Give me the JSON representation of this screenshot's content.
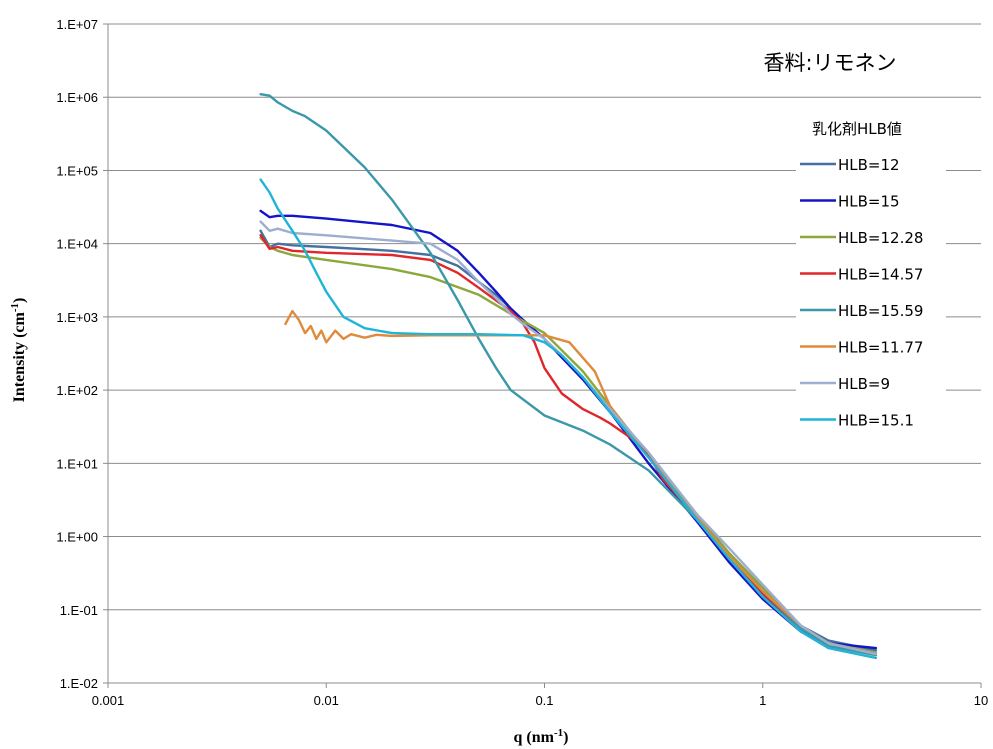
{
  "chart_data": {
    "type": "line",
    "title": "",
    "annotation": "香料:リモネン",
    "xlabel": "q (nm",
    "xlabel_sup": "-1",
    "xlabel_end": ")",
    "ylabel": "Intensity (cm",
    "ylabel_sup": "-1",
    "ylabel_end": ")",
    "x_scale": "log",
    "y_scale": "log",
    "xlim": [
      0.001,
      10
    ],
    "ylim": [
      0.01,
      10000000
    ],
    "x_ticks": [
      {
        "value": 0.001,
        "label": "0.001"
      },
      {
        "value": 0.01,
        "label": "0.01"
      },
      {
        "value": 0.1,
        "label": "0.1"
      },
      {
        "value": 1,
        "label": "1"
      },
      {
        "value": 10,
        "label": "10"
      }
    ],
    "y_ticks": [
      {
        "value": 0.01,
        "label": "1.E-02"
      },
      {
        "value": 0.1,
        "label": "1.E-01"
      },
      {
        "value": 1,
        "label": "1.E+00"
      },
      {
        "value": 10,
        "label": "1.E+01"
      },
      {
        "value": 100,
        "label": "1.E+02"
      },
      {
        "value": 1000,
        "label": "1.E+03"
      },
      {
        "value": 10000,
        "label": "1.E+04"
      },
      {
        "value": 100000,
        "label": "1.E+05"
      },
      {
        "value": 1000000,
        "label": "1.E+06"
      },
      {
        "value": 10000000,
        "label": "1.E+07"
      }
    ],
    "grid": {
      "horizontal": true,
      "vertical": false
    },
    "legend": {
      "title": "乳化剤HLB値",
      "position": "right"
    },
    "series": [
      {
        "name": "HLB=12",
        "color": "#44719f",
        "points": [
          [
            0.005,
            15000
          ],
          [
            0.0055,
            9000
          ],
          [
            0.006,
            10000
          ],
          [
            0.007,
            9500
          ],
          [
            0.01,
            9000
          ],
          [
            0.02,
            8000
          ],
          [
            0.03,
            7000
          ],
          [
            0.04,
            5000
          ],
          [
            0.05,
            3000
          ],
          [
            0.06,
            2000
          ],
          [
            0.07,
            1300
          ],
          [
            0.08,
            900
          ],
          [
            0.1,
            500
          ],
          [
            0.12,
            280
          ],
          [
            0.15,
            140
          ],
          [
            0.2,
            50
          ],
          [
            0.3,
            12
          ],
          [
            0.5,
            1.8
          ],
          [
            0.7,
            0.55
          ],
          [
            1,
            0.17
          ],
          [
            1.5,
            0.06
          ],
          [
            2,
            0.038
          ],
          [
            3.3,
            0.028
          ]
        ]
      },
      {
        "name": "HLB=15",
        "color": "#1414c8",
        "points": [
          [
            0.005,
            28000
          ],
          [
            0.0055,
            23000
          ],
          [
            0.006,
            24000
          ],
          [
            0.007,
            24000
          ],
          [
            0.01,
            22000
          ],
          [
            0.02,
            18000
          ],
          [
            0.03,
            14000
          ],
          [
            0.04,
            8000
          ],
          [
            0.05,
            4000
          ],
          [
            0.06,
            2200
          ],
          [
            0.07,
            1300
          ],
          [
            0.08,
            900
          ],
          [
            0.1,
            500
          ],
          [
            0.12,
            280
          ],
          [
            0.15,
            140
          ],
          [
            0.2,
            50
          ],
          [
            0.3,
            10
          ],
          [
            0.5,
            1.6
          ],
          [
            0.7,
            0.45
          ],
          [
            1,
            0.14
          ],
          [
            1.5,
            0.05
          ],
          [
            2,
            0.035
          ],
          [
            3.3,
            0.03
          ]
        ]
      },
      {
        "name": "HLB=12.28",
        "color": "#8aa83c",
        "points": [
          [
            0.005,
            12000
          ],
          [
            0.0055,
            9000
          ],
          [
            0.006,
            8000
          ],
          [
            0.007,
            7000
          ],
          [
            0.01,
            6000
          ],
          [
            0.02,
            4500
          ],
          [
            0.03,
            3500
          ],
          [
            0.05,
            2000
          ],
          [
            0.07,
            1100
          ],
          [
            0.1,
            600
          ],
          [
            0.12,
            350
          ],
          [
            0.15,
            180
          ],
          [
            0.2,
            60
          ],
          [
            0.3,
            13
          ],
          [
            0.5,
            2
          ],
          [
            0.7,
            0.6
          ],
          [
            1,
            0.2
          ],
          [
            1.5,
            0.06
          ],
          [
            2,
            0.035
          ],
          [
            3.3,
            0.026
          ]
        ]
      },
      {
        "name": "HLB=14.57",
        "color": "#e0262b",
        "points": [
          [
            0.005,
            13000
          ],
          [
            0.0055,
            8500
          ],
          [
            0.006,
            9000
          ],
          [
            0.007,
            8000
          ],
          [
            0.01,
            7500
          ],
          [
            0.02,
            7000
          ],
          [
            0.03,
            6000
          ],
          [
            0.04,
            4000
          ],
          [
            0.05,
            2500
          ],
          [
            0.07,
            1200
          ],
          [
            0.08,
            800
          ],
          [
            0.09,
            450
          ],
          [
            0.1,
            200
          ],
          [
            0.12,
            90
          ],
          [
            0.15,
            55
          ],
          [
            0.18,
            42
          ],
          [
            0.2,
            35
          ],
          [
            0.25,
            22
          ],
          [
            0.3,
            13
          ],
          [
            0.35,
            6
          ],
          [
            0.5,
            1.8
          ],
          [
            0.7,
            0.5
          ],
          [
            1,
            0.16
          ],
          [
            1.5,
            0.055
          ],
          [
            2,
            0.035
          ],
          [
            3.3,
            0.025
          ]
        ]
      },
      {
        "name": "HLB=15.59",
        "color": "#3a98a8",
        "points": [
          [
            0.005,
            1100000
          ],
          [
            0.0055,
            1050000
          ],
          [
            0.006,
            850000
          ],
          [
            0.007,
            650000
          ],
          [
            0.008,
            550000
          ],
          [
            0.01,
            350000
          ],
          [
            0.015,
            110000
          ],
          [
            0.02,
            40000
          ],
          [
            0.03,
            7500
          ],
          [
            0.04,
            1700
          ],
          [
            0.05,
            500
          ],
          [
            0.06,
            200
          ],
          [
            0.07,
            100
          ],
          [
            0.1,
            45
          ],
          [
            0.15,
            28
          ],
          [
            0.2,
            18
          ],
          [
            0.3,
            8
          ],
          [
            0.5,
            1.7
          ],
          [
            0.7,
            0.55
          ],
          [
            1,
            0.18
          ],
          [
            1.5,
            0.055
          ],
          [
            2,
            0.032
          ],
          [
            3.3,
            0.024
          ]
        ]
      },
      {
        "name": "HLB=11.77",
        "color": "#e08a3c",
        "points": [
          [
            0.0065,
            800
          ],
          [
            0.007,
            1200
          ],
          [
            0.0075,
            900
          ],
          [
            0.008,
            600
          ],
          [
            0.0085,
            750
          ],
          [
            0.009,
            500
          ],
          [
            0.0095,
            650
          ],
          [
            0.01,
            450
          ],
          [
            0.011,
            650
          ],
          [
            0.012,
            500
          ],
          [
            0.013,
            580
          ],
          [
            0.015,
            520
          ],
          [
            0.017,
            570
          ],
          [
            0.02,
            550
          ],
          [
            0.03,
            560
          ],
          [
            0.05,
            560
          ],
          [
            0.07,
            560
          ],
          [
            0.1,
            560
          ],
          [
            0.13,
            450
          ],
          [
            0.17,
            180
          ],
          [
            0.2,
            60
          ],
          [
            0.25,
            25
          ],
          [
            0.3,
            14
          ],
          [
            0.4,
            4
          ],
          [
            0.5,
            1.8
          ],
          [
            0.7,
            0.55
          ],
          [
            1,
            0.18
          ],
          [
            1.5,
            0.06
          ],
          [
            2,
            0.035
          ],
          [
            3.3,
            0.025
          ]
        ]
      },
      {
        "name": "HLB=9",
        "color": "#9daed0",
        "points": [
          [
            0.005,
            20000
          ],
          [
            0.0055,
            15000
          ],
          [
            0.006,
            16000
          ],
          [
            0.007,
            14000
          ],
          [
            0.01,
            13000
          ],
          [
            0.02,
            11000
          ],
          [
            0.03,
            10000
          ],
          [
            0.04,
            6000
          ],
          [
            0.05,
            3000
          ],
          [
            0.06,
            1800
          ],
          [
            0.07,
            1100
          ],
          [
            0.08,
            800
          ],
          [
            0.1,
            500
          ],
          [
            0.12,
            300
          ],
          [
            0.15,
            150
          ],
          [
            0.2,
            55
          ],
          [
            0.3,
            14
          ],
          [
            0.5,
            2
          ],
          [
            0.7,
            0.7
          ],
          [
            1,
            0.22
          ],
          [
            1.5,
            0.06
          ],
          [
            2,
            0.035
          ],
          [
            3.3,
            0.025
          ]
        ]
      },
      {
        "name": "HLB=15.1",
        "color": "#21b4d6",
        "points": [
          [
            0.005,
            75000
          ],
          [
            0.0055,
            50000
          ],
          [
            0.006,
            30000
          ],
          [
            0.007,
            15000
          ],
          [
            0.008,
            8000
          ],
          [
            0.009,
            4000
          ],
          [
            0.01,
            2200
          ],
          [
            0.012,
            1000
          ],
          [
            0.015,
            700
          ],
          [
            0.02,
            600
          ],
          [
            0.03,
            580
          ],
          [
            0.05,
            580
          ],
          [
            0.08,
            560
          ],
          [
            0.1,
            450
          ],
          [
            0.12,
            300
          ],
          [
            0.15,
            150
          ],
          [
            0.2,
            50
          ],
          [
            0.3,
            12
          ],
          [
            0.5,
            1.7
          ],
          [
            0.7,
            0.5
          ],
          [
            1,
            0.15
          ],
          [
            1.5,
            0.05
          ],
          [
            2,
            0.03
          ],
          [
            3.3,
            0.022
          ]
        ]
      }
    ]
  }
}
